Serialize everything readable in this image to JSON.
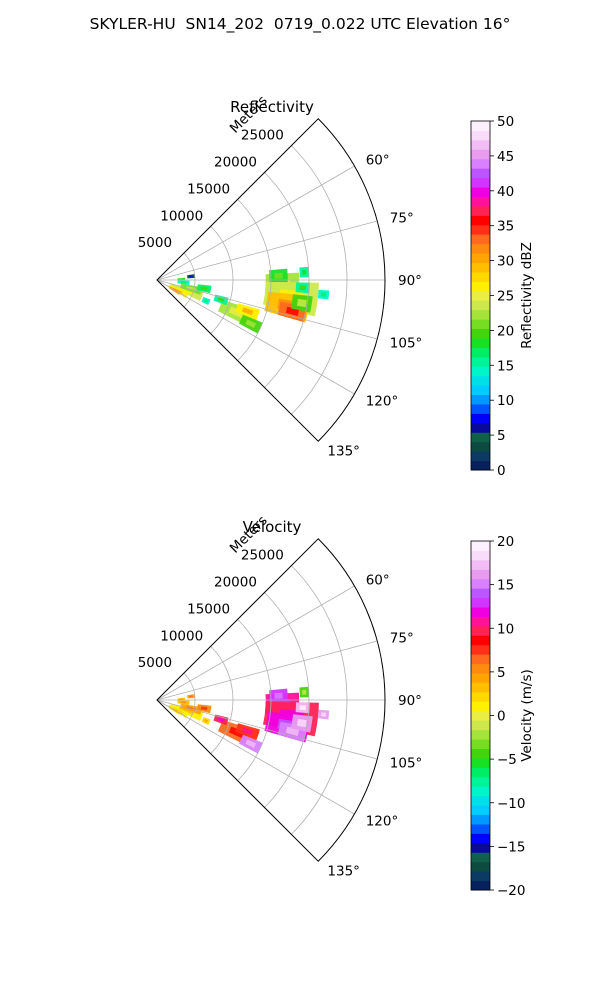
{
  "title": "SKYLER-HU  SN14_202  0719_0.022 UTC Elevation 16°",
  "chart_data": [
    {
      "type": "heatmap",
      "subtitle": "Reflectivity",
      "r_label": "Meters",
      "r_ticks": [
        5000,
        10000,
        15000,
        20000,
        25000
      ],
      "r_tick_labels": [
        "5000",
        "10000",
        "15000",
        "20000",
        "25000"
      ],
      "theta_ticks": [
        60,
        75,
        90,
        105,
        120,
        135
      ],
      "theta_tick_labels": [
        "60°",
        "75°",
        "90°",
        "105°",
        "120°",
        "135°"
      ],
      "theta_range_deg": [
        45,
        135
      ],
      "r_range": [
        0,
        30000
      ],
      "grid": true,
      "colorbar": {
        "label": "Reflectivity dBZ",
        "range": [
          0,
          50
        ],
        "ticks": [
          0,
          5,
          10,
          15,
          20,
          25,
          30,
          35,
          40,
          45,
          50
        ],
        "tick_labels": [
          "0",
          "5",
          "10",
          "15",
          "20",
          "25",
          "30",
          "35",
          "40",
          "45",
          "50"
        ],
        "colors": [
          "#08215e",
          "#0b3a62",
          "#0d4a40",
          "#10604a",
          "#0a0a9a",
          "#0000ff",
          "#0055ff",
          "#0099ff",
          "#00ccff",
          "#00e0e8",
          "#00f5c8",
          "#00f59a",
          "#00ee66",
          "#18e024",
          "#44d40e",
          "#77dd22",
          "#a4e43a",
          "#cde84c",
          "#eaed44",
          "#fff000",
          "#ffd800",
          "#ffbe00",
          "#ffa400",
          "#ff8a10",
          "#ff6a20",
          "#ff3018",
          "#ff0000",
          "#ff2255",
          "#ff1199",
          "#f000e0",
          "#d036ff",
          "#bb55ff",
          "#d880ff",
          "#e89cf0",
          "#f2bcf4",
          "#f9dcf9",
          "#fdf0fd"
        ]
      },
      "echo_cells": [
        {
          "az": 92,
          "r": 16500,
          "ar": 2200,
          "aa": 5,
          "v": 22
        },
        {
          "az": 88,
          "r": 16000,
          "ar": 1200,
          "aa": 3,
          "v": 18
        },
        {
          "az": 97,
          "r": 17800,
          "ar": 3500,
          "aa": 6,
          "v": 24
        },
        {
          "az": 101,
          "r": 17500,
          "ar": 2800,
          "aa": 5,
          "v": 29
        },
        {
          "az": 103,
          "r": 18300,
          "ar": 1800,
          "aa": 3,
          "v": 33
        },
        {
          "az": 99,
          "r": 19300,
          "ar": 1300,
          "aa": 3,
          "v": 20
        },
        {
          "az": 93,
          "r": 19200,
          "ar": 900,
          "aa": 2,
          "v": 16
        },
        {
          "az": 95,
          "r": 22000,
          "ar": 700,
          "aa": 1.5,
          "v": 14
        },
        {
          "az": 87,
          "r": 19400,
          "ar": 600,
          "aa": 2,
          "v": 15
        },
        {
          "az": 112,
          "r": 11500,
          "ar": 2500,
          "aa": 5,
          "v": 22
        },
        {
          "az": 109,
          "r": 12600,
          "ar": 1500,
          "aa": 3,
          "v": 27
        },
        {
          "az": 115,
          "r": 13600,
          "ar": 1400,
          "aa": 3,
          "v": 19
        },
        {
          "az": 107,
          "r": 8800,
          "ar": 900,
          "aa": 3,
          "v": 16
        },
        {
          "az": 110,
          "r": 4100,
          "ar": 2200,
          "aa": 6,
          "v": 24
        },
        {
          "az": 104,
          "r": 4600,
          "ar": 1400,
          "aa": 5,
          "v": 21
        },
        {
          "az": 117,
          "r": 3100,
          "ar": 1400,
          "aa": 5,
          "v": 26
        },
        {
          "az": 120,
          "r": 2700,
          "ar": 800,
          "aa": 4,
          "v": 30
        },
        {
          "az": 100,
          "r": 6300,
          "ar": 900,
          "aa": 4,
          "v": 17
        },
        {
          "az": 95,
          "r": 3500,
          "ar": 800,
          "aa": 4,
          "v": 14
        },
        {
          "az": 84,
          "r": 4500,
          "ar": 500,
          "aa": 3,
          "v": 4
        },
        {
          "az": 88,
          "r": 3200,
          "ar": 500,
          "aa": 2.5,
          "v": 18
        },
        {
          "az": 113,
          "r": 7000,
          "ar": 500,
          "aa": 3,
          "v": 14
        }
      ]
    },
    {
      "type": "heatmap",
      "subtitle": "Velocity",
      "r_label": "Meters",
      "r_ticks": [
        5000,
        10000,
        15000,
        20000,
        25000
      ],
      "r_tick_labels": [
        "5000",
        "10000",
        "15000",
        "20000",
        "25000"
      ],
      "theta_ticks": [
        60,
        75,
        90,
        105,
        120,
        135
      ],
      "theta_tick_labels": [
        "60°",
        "75°",
        "90°",
        "105°",
        "120°",
        "135°"
      ],
      "theta_range_deg": [
        45,
        135
      ],
      "r_range": [
        0,
        30000
      ],
      "grid": true,
      "colorbar": {
        "label": "Velocity (m/s)",
        "range": [
          -20,
          20
        ],
        "ticks": [
          -20,
          -15,
          -10,
          -5,
          0,
          5,
          10,
          15,
          20
        ],
        "tick_labels": [
          "−20",
          "−15",
          "−10",
          "−5",
          "0",
          "5",
          "10",
          "15",
          "20"
        ],
        "colors": [
          "#08215e",
          "#0b3a62",
          "#0d4a40",
          "#10604a",
          "#0a0a9a",
          "#0000ff",
          "#0055ff",
          "#0099ff",
          "#00ccff",
          "#00e0e8",
          "#00f5c8",
          "#00f59a",
          "#00ee66",
          "#18e024",
          "#44d40e",
          "#77dd22",
          "#a4e43a",
          "#cde84c",
          "#eaed44",
          "#fff000",
          "#ffd800",
          "#ffbe00",
          "#ffa400",
          "#ff8a10",
          "#ff6a20",
          "#ff3018",
          "#ff0000",
          "#ff2255",
          "#ff1199",
          "#f000e0",
          "#d036ff",
          "#bb55ff",
          "#d880ff",
          "#e89cf0",
          "#f2bcf4",
          "#f9dcf9",
          "#fdf0fd"
        ]
      },
      "echo_cells": [
        {
          "az": 92,
          "r": 16500,
          "ar": 2200,
          "aa": 5,
          "v": 11
        },
        {
          "az": 88,
          "r": 16000,
          "ar": 1200,
          "aa": 3,
          "v": 13
        },
        {
          "az": 97,
          "r": 17800,
          "ar": 3500,
          "aa": 6,
          "v": 10
        },
        {
          "az": 101,
          "r": 17500,
          "ar": 2800,
          "aa": 5,
          "v": 12
        },
        {
          "az": 103,
          "r": 18300,
          "ar": 1800,
          "aa": 3,
          "v": 15
        },
        {
          "az": 99,
          "r": 19300,
          "ar": 1300,
          "aa": 3,
          "v": 16
        },
        {
          "az": 93,
          "r": 19200,
          "ar": 900,
          "aa": 2,
          "v": 17
        },
        {
          "az": 95,
          "r": 22000,
          "ar": 700,
          "aa": 1.5,
          "v": 16
        },
        {
          "az": 87,
          "r": 19400,
          "ar": 600,
          "aa": 2,
          "v": -4
        },
        {
          "az": 112,
          "r": 11500,
          "ar": 2500,
          "aa": 5,
          "v": 6
        },
        {
          "az": 109,
          "r": 12600,
          "ar": 1500,
          "aa": 3,
          "v": 8
        },
        {
          "az": 115,
          "r": 13600,
          "ar": 1400,
          "aa": 3,
          "v": 15
        },
        {
          "az": 107,
          "r": 8800,
          "ar": 900,
          "aa": 3,
          "v": 10
        },
        {
          "az": 110,
          "r": 4100,
          "ar": 2200,
          "aa": 6,
          "v": 1
        },
        {
          "az": 104,
          "r": 4600,
          "ar": 1400,
          "aa": 5,
          "v": 4
        },
        {
          "az": 117,
          "r": 3100,
          "ar": 1400,
          "aa": 5,
          "v": 1
        },
        {
          "az": 120,
          "r": 2700,
          "ar": 800,
          "aa": 4,
          "v": 2
        },
        {
          "az": 100,
          "r": 6300,
          "ar": 900,
          "aa": 4,
          "v": 5
        },
        {
          "az": 95,
          "r": 3500,
          "ar": 800,
          "aa": 4,
          "v": 3
        },
        {
          "az": 84,
          "r": 4500,
          "ar": 500,
          "aa": 3,
          "v": 4
        },
        {
          "az": 88,
          "r": 3200,
          "ar": 500,
          "aa": 2.5,
          "v": 3
        },
        {
          "az": 113,
          "r": 7000,
          "ar": 500,
          "aa": 3,
          "v": 2
        }
      ]
    }
  ]
}
